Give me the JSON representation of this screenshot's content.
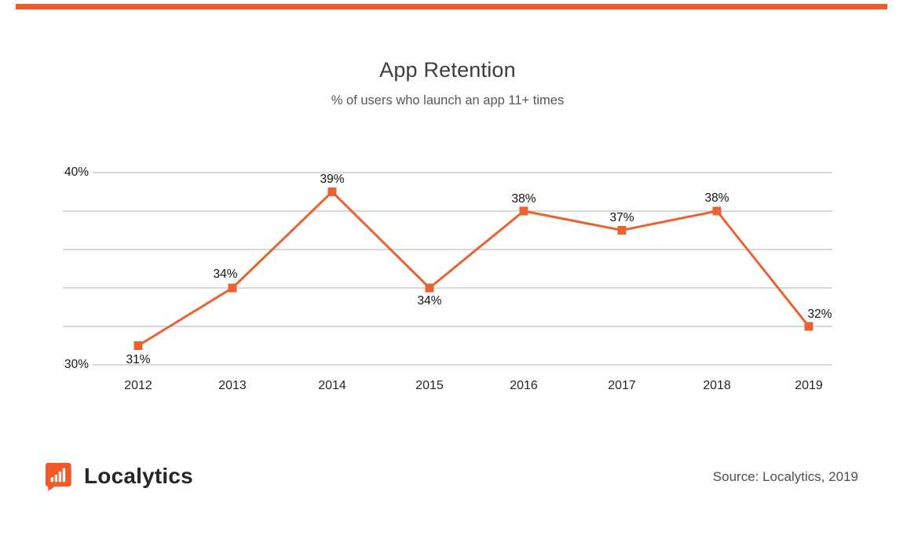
{
  "header": {
    "title": "App Retention",
    "subtitle": "% of users who launch an app 11+ times"
  },
  "chart_data": {
    "type": "line",
    "title": "App Retention",
    "subtitle": "% of users who launch an app 11+ times",
    "categories": [
      "2012",
      "2013",
      "2014",
      "2015",
      "2016",
      "2017",
      "2018",
      "2019"
    ],
    "values": [
      31,
      34,
      39,
      34,
      38,
      37,
      38,
      32
    ],
    "point_labels": [
      "31%",
      "34%",
      "39%",
      "34%",
      "38%",
      "37%",
      "38%",
      "32%"
    ],
    "xlabel": "",
    "ylabel": "",
    "ylim": [
      30,
      40
    ],
    "gridline_values": [
      40,
      38,
      36,
      34,
      32,
      30
    ],
    "yticks_shown": [
      {
        "label": "40%",
        "value": 40
      },
      {
        "label": "30%",
        "value": 30
      }
    ],
    "legend_position": "none",
    "grid": "horizontal",
    "line_color": "#E96231",
    "marker": "square",
    "gridline_color": "#ddd7d6"
  },
  "footer": {
    "logo_text": "Localytics",
    "source": "Source: Localytics, 2019"
  },
  "colors": {
    "brand_accent": "#F05A28",
    "line": "#E96231"
  }
}
